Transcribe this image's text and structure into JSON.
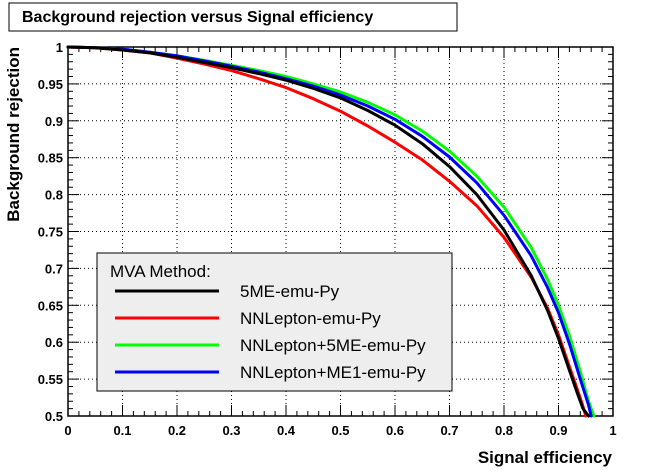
{
  "chart_data": {
    "type": "line",
    "title": "Background rejection versus Signal efficiency",
    "xlabel": "Signal efficiency",
    "ylabel": "Background rejection",
    "xlim": [
      0,
      1
    ],
    "ylim": [
      0.5,
      1
    ],
    "grid": true,
    "legend_title": "MVA Method:",
    "legend_position": "lower-left",
    "x_ticks": [
      "0",
      "0.1",
      "0.2",
      "0.3",
      "0.4",
      "0.5",
      "0.6",
      "0.7",
      "0.8",
      "0.9",
      "1"
    ],
    "y_ticks": [
      "0.5",
      "0.55",
      "0.6",
      "0.65",
      "0.7",
      "0.75",
      "0.8",
      "0.85",
      "0.9",
      "0.95",
      "1"
    ],
    "series": [
      {
        "name": "5ME-emu-Py",
        "color": "#000000",
        "x": [
          0,
          0.05,
          0.1,
          0.15,
          0.2,
          0.25,
          0.3,
          0.35,
          0.4,
          0.45,
          0.5,
          0.55,
          0.6,
          0.65,
          0.7,
          0.75,
          0.8,
          0.85,
          0.88,
          0.9,
          0.92,
          0.935,
          0.945,
          0.955
        ],
        "y": [
          1.0,
          0.999,
          0.996,
          0.992,
          0.986,
          0.979,
          0.972,
          0.964,
          0.955,
          0.944,
          0.931,
          0.914,
          0.894,
          0.869,
          0.838,
          0.8,
          0.752,
          0.69,
          0.643,
          0.605,
          0.562,
          0.53,
          0.51,
          0.5
        ]
      },
      {
        "name": "NNLepton-emu-Py",
        "color": "#ff0000",
        "x": [
          0,
          0.05,
          0.1,
          0.15,
          0.2,
          0.25,
          0.3,
          0.35,
          0.4,
          0.45,
          0.5,
          0.55,
          0.6,
          0.65,
          0.7,
          0.75,
          0.8,
          0.85,
          0.88,
          0.9,
          0.92,
          0.935,
          0.945,
          0.95
        ],
        "y": [
          1.0,
          0.999,
          0.996,
          0.992,
          0.985,
          0.977,
          0.968,
          0.957,
          0.945,
          0.93,
          0.913,
          0.893,
          0.871,
          0.847,
          0.818,
          0.785,
          0.742,
          0.688,
          0.646,
          0.61,
          0.567,
          0.535,
          0.513,
          0.5
        ]
      },
      {
        "name": "NNLepton+5ME-emu-Py",
        "color": "#00ff00",
        "x": [
          0,
          0.05,
          0.1,
          0.15,
          0.2,
          0.25,
          0.3,
          0.35,
          0.4,
          0.45,
          0.5,
          0.55,
          0.6,
          0.65,
          0.7,
          0.75,
          0.8,
          0.85,
          0.88,
          0.9,
          0.92,
          0.94,
          0.955,
          0.965
        ],
        "y": [
          1.0,
          0.999,
          0.997,
          0.993,
          0.988,
          0.982,
          0.975,
          0.968,
          0.96,
          0.95,
          0.939,
          0.925,
          0.908,
          0.886,
          0.859,
          0.825,
          0.783,
          0.728,
          0.685,
          0.65,
          0.609,
          0.56,
          0.52,
          0.5
        ]
      },
      {
        "name": "NNLepton+ME1-emu-Py",
        "color": "#0000ff",
        "x": [
          0,
          0.05,
          0.1,
          0.15,
          0.2,
          0.25,
          0.3,
          0.35,
          0.4,
          0.45,
          0.5,
          0.55,
          0.6,
          0.65,
          0.7,
          0.75,
          0.8,
          0.85,
          0.88,
          0.9,
          0.92,
          0.94,
          0.955,
          0.96
        ],
        "y": [
          1.0,
          0.999,
          0.997,
          0.993,
          0.988,
          0.981,
          0.974,
          0.966,
          0.957,
          0.947,
          0.935,
          0.92,
          0.902,
          0.879,
          0.851,
          0.816,
          0.772,
          0.717,
          0.674,
          0.64,
          0.598,
          0.55,
          0.515,
          0.5
        ]
      }
    ]
  }
}
